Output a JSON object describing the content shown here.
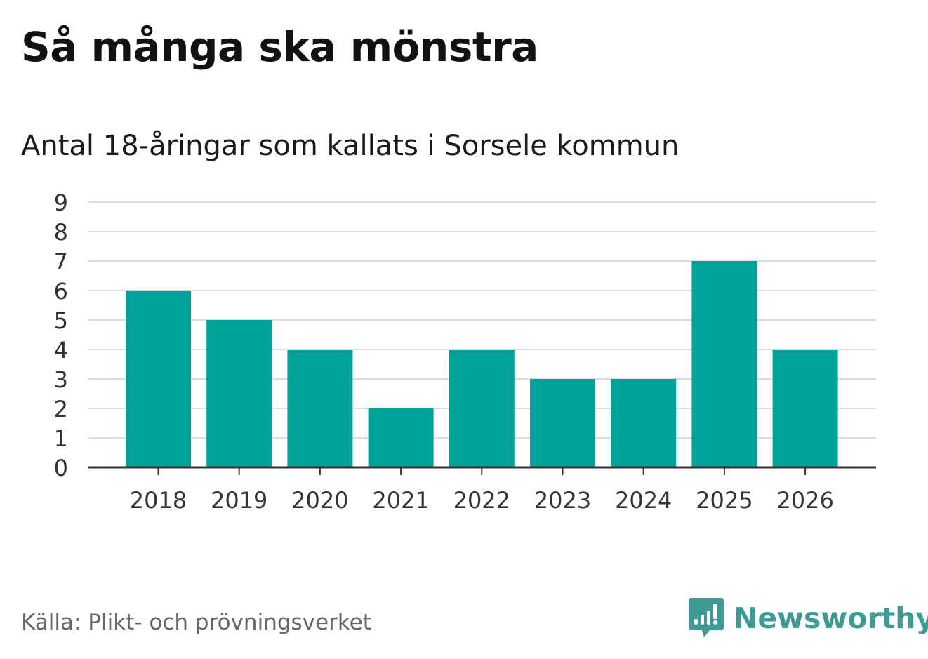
{
  "header": {
    "title": "Så många ska mönstra",
    "subtitle": "Antal 18-åringar som kallats i Sorsele kommun"
  },
  "footer": {
    "source": "Källa: Plikt- och prövningsverket",
    "brand": "Newsworthy"
  },
  "colors": {
    "bar": "#00a39a",
    "grid": "#dddddd",
    "axis": "#333333",
    "brand": "#3d9a95"
  },
  "chart_data": {
    "type": "bar",
    "title": "Så många ska mönstra",
    "subtitle": "Antal 18-åringar som kallats i Sorsele kommun",
    "xlabel": "",
    "ylabel": "",
    "categories": [
      "2018",
      "2019",
      "2020",
      "2021",
      "2022",
      "2023",
      "2024",
      "2025",
      "2026"
    ],
    "values": [
      6,
      5,
      4,
      2,
      4,
      3,
      3,
      7,
      4
    ],
    "ylim": [
      0,
      9
    ],
    "yticks": [
      0,
      1,
      2,
      3,
      4,
      5,
      6,
      7,
      8,
      9
    ],
    "grid": true
  }
}
